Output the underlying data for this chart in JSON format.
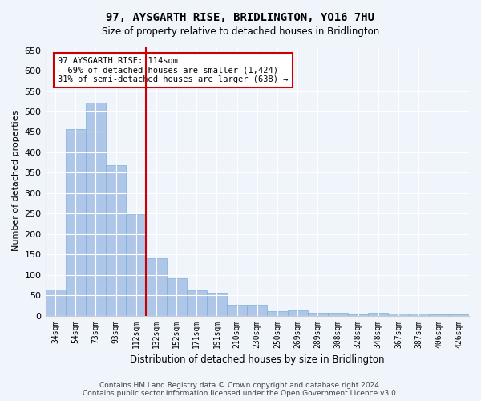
{
  "title": "97, AYSGARTH RISE, BRIDLINGTON, YO16 7HU",
  "subtitle": "Size of property relative to detached houses in Bridlington",
  "xlabel": "Distribution of detached houses by size in Bridlington",
  "ylabel": "Number of detached properties",
  "footer_line1": "Contains HM Land Registry data © Crown copyright and database right 2024.",
  "footer_line2": "Contains public sector information licensed under the Open Government Licence v3.0.",
  "categories": [
    "34sqm",
    "54sqm",
    "73sqm",
    "93sqm",
    "112sqm",
    "132sqm",
    "152sqm",
    "171sqm",
    "191sqm",
    "210sqm",
    "230sqm",
    "250sqm",
    "269sqm",
    "289sqm",
    "308sqm",
    "328sqm",
    "348sqm",
    "367sqm",
    "387sqm",
    "406sqm",
    "426sqm"
  ],
  "values": [
    63,
    456,
    521,
    369,
    249,
    140,
    92,
    61,
    56,
    27,
    26,
    10,
    13,
    7,
    7,
    4,
    7,
    6,
    5,
    4,
    3
  ],
  "bar_color": "#aec6e8",
  "bar_edge_color": "#7bafd4",
  "marker_line_color": "#cc0000",
  "marker_bin_index": 4,
  "annotation_title": "97 AYSGARTH RISE: 114sqm",
  "annotation_line1": "← 69% of detached houses are smaller (1,424)",
  "annotation_line2": "31% of semi-detached houses are larger (638) →",
  "annotation_box_color": "#ffffff",
  "annotation_box_edge": "#cc0000",
  "background_color": "#f0f4fb",
  "ylim": [
    0,
    660
  ],
  "yticks": [
    0,
    50,
    100,
    150,
    200,
    250,
    300,
    350,
    400,
    450,
    500,
    550,
    600,
    650
  ]
}
